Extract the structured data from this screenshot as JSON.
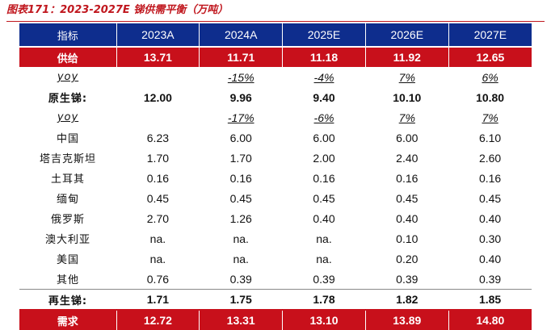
{
  "caption": "图表171：2023-2027E 锑供需平衡（万吨）",
  "columns": [
    "指标",
    "2023A",
    "2024A",
    "2025E",
    "2026E",
    "2027E"
  ],
  "rows": [
    {
      "label": "供给",
      "values": [
        "13.71",
        "11.71",
        "11.18",
        "11.92",
        "12.65"
      ]
    },
    {
      "label": "yoy",
      "values": [
        "",
        "-15%",
        "-4%",
        "7%",
        "6%"
      ]
    },
    {
      "label": "原生锑:",
      "values": [
        "12.00",
        "9.96",
        "9.40",
        "10.10",
        "10.80"
      ]
    },
    {
      "label": "yoy",
      "values": [
        "",
        "-17%",
        "-6%",
        "7%",
        "7%"
      ]
    },
    {
      "label": "中国",
      "values": [
        "6.23",
        "6.00",
        "6.00",
        "6.00",
        "6.10"
      ]
    },
    {
      "label": "塔吉克斯坦",
      "values": [
        "1.70",
        "1.70",
        "2.00",
        "2.40",
        "2.60"
      ]
    },
    {
      "label": "土耳其",
      "values": [
        "0.16",
        "0.16",
        "0.16",
        "0.16",
        "0.16"
      ]
    },
    {
      "label": "缅甸",
      "values": [
        "0.45",
        "0.45",
        "0.45",
        "0.45",
        "0.45"
      ]
    },
    {
      "label": "俄罗斯",
      "values": [
        "2.70",
        "1.26",
        "0.40",
        "0.40",
        "0.40"
      ]
    },
    {
      "label": "澳大利亚",
      "values": [
        "na.",
        "na.",
        "na.",
        "0.10",
        "0.30"
      ]
    },
    {
      "label": "美国",
      "values": [
        "na.",
        "na.",
        "na.",
        "0.20",
        "0.40"
      ]
    },
    {
      "label": "其他",
      "values": [
        "0.76",
        "0.39",
        "0.39",
        "0.39",
        "0.39"
      ]
    },
    {
      "label": "再生锑:",
      "values": [
        "1.71",
        "1.75",
        "1.78",
        "1.82",
        "1.85"
      ]
    },
    {
      "label": "需求",
      "values": [
        "12.72",
        "13.31",
        "13.10",
        "13.89",
        "14.80"
      ]
    }
  ]
}
